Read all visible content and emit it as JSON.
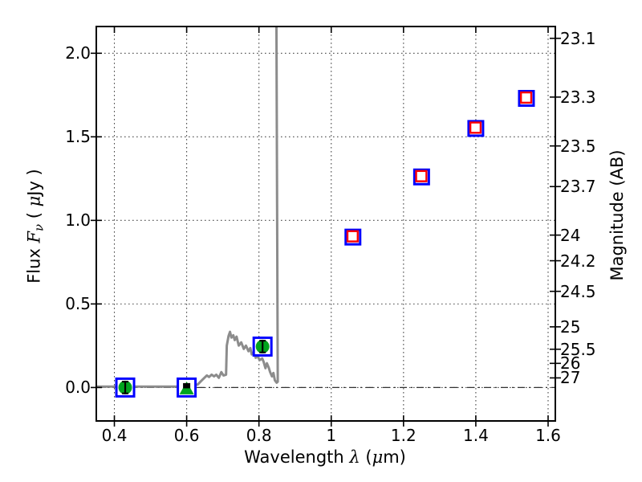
{
  "chart_data": {
    "type": "scatter",
    "description": "Spectral energy distribution plot: observed flux vs wavelength with photometric points, an upper limit, model photometry squares and a model spectrum line",
    "xlabel_parts": [
      {
        "t": "Wavelength  ",
        "s": "normal"
      },
      {
        "t": "λ",
        "s": "mathit"
      },
      {
        "t": " (",
        "s": "normal"
      },
      {
        "t": "μ",
        "s": "mathit"
      },
      {
        "t": "m)",
        "s": "normal"
      }
    ],
    "ylabel_left_parts": [
      {
        "t": "Flux  ",
        "s": "normal"
      },
      {
        "t": "F",
        "s": "mathit"
      },
      {
        "t": "ν",
        "s": "sub"
      },
      {
        "t": "  ( ",
        "s": "normal"
      },
      {
        "t": "μ",
        "s": "mathit"
      },
      {
        "t": "Jy )",
        "s": "normal"
      }
    ],
    "ylabel_right": "Magnitude (AB)",
    "x_axis": {
      "lim": [
        0.35,
        1.62
      ],
      "grid": "dotted",
      "ticks": [
        {
          "v": 0.4,
          "label": "0.4"
        },
        {
          "v": 0.6,
          "label": "0.6"
        },
        {
          "v": 0.8,
          "label": "0.8"
        },
        {
          "v": 1.0,
          "label": "1"
        },
        {
          "v": 1.2,
          "label": "1.2"
        },
        {
          "v": 1.4,
          "label": "1.4"
        },
        {
          "v": 1.6,
          "label": "1.6"
        }
      ]
    },
    "y_left_axis": {
      "lim": [
        -0.2,
        2.16
      ],
      "grid": "dotted",
      "ticks": [
        {
          "v": 2.0,
          "label": "2.0"
        },
        {
          "v": 1.5,
          "label": "1.5"
        },
        {
          "v": 1.0,
          "label": "1.0"
        },
        {
          "v": 0.5,
          "label": "0.5"
        },
        {
          "v": 0.0,
          "label": "0.0"
        }
      ]
    },
    "y_right_axis": {
      "ab_zero_point_microjansky": 23.9,
      "ticks": [
        {
          "mag": 23.1,
          "label": "23.1"
        },
        {
          "mag": 23.3,
          "label": "23.3"
        },
        {
          "mag": 23.5,
          "label": "23.5"
        },
        {
          "mag": 23.7,
          "label": "23.7"
        },
        {
          "mag": 24.0,
          "label": "24"
        },
        {
          "mag": 24.2,
          "label": "24.2"
        },
        {
          "mag": 24.5,
          "label": "24.5"
        },
        {
          "mag": 25.0,
          "label": "25"
        },
        {
          "mag": 25.5,
          "label": "25.5"
        },
        {
          "mag": 26.0,
          "label": "26"
        },
        {
          "mag": 27.0,
          "label": "27"
        }
      ]
    },
    "zero_flux_line": {
      "flux": 0.0,
      "style": "dash-dot"
    },
    "colors": {
      "spectrum": "#8c8c8c",
      "box": "#0000ff",
      "detection": "#00a41e",
      "model": "#ff0000",
      "errorbar": "#000000",
      "frame": "#000000",
      "grid": "#4a4a4a"
    },
    "series": [
      {
        "name": "photometry-detections",
        "marker": "green-circle-in-blue-square",
        "points": [
          {
            "x": 0.43,
            "y": 0.0,
            "yerr": 0.035
          },
          {
            "x": 0.81,
            "y": 0.245,
            "yerr": 0.035
          }
        ]
      },
      {
        "name": "photometry-upper-limit",
        "marker": "green-triangle-up-in-blue-square",
        "points": [
          {
            "x": 0.6,
            "y": 0.0
          }
        ]
      },
      {
        "name": "model-photometry",
        "marker": "red-open-square-in-blue-square",
        "points": [
          {
            "x": 1.06,
            "y": 0.9
          },
          {
            "x": 1.25,
            "y": 1.26
          },
          {
            "x": 1.4,
            "y": 1.55
          },
          {
            "x": 1.54,
            "y": 1.73
          }
        ]
      },
      {
        "name": "model-spectrum",
        "marker": "line",
        "points_xy": [
          [
            0.35,
            0.005
          ],
          [
            0.596,
            0.005
          ],
          [
            0.618,
            0.01
          ],
          [
            0.631,
            0.019
          ],
          [
            0.64,
            0.039
          ],
          [
            0.649,
            0.058
          ],
          [
            0.656,
            0.072
          ],
          [
            0.662,
            0.063
          ],
          [
            0.669,
            0.077
          ],
          [
            0.676,
            0.067
          ],
          [
            0.682,
            0.077
          ],
          [
            0.689,
            0.058
          ],
          [
            0.696,
            0.092
          ],
          [
            0.702,
            0.072
          ],
          [
            0.709,
            0.077
          ],
          [
            0.711,
            0.251
          ],
          [
            0.716,
            0.308
          ],
          [
            0.72,
            0.333
          ],
          [
            0.724,
            0.299
          ],
          [
            0.729,
            0.313
          ],
          [
            0.733,
            0.284
          ],
          [
            0.738,
            0.304
          ],
          [
            0.744,
            0.251
          ],
          [
            0.751,
            0.27
          ],
          [
            0.758,
            0.231
          ],
          [
            0.764,
            0.251
          ],
          [
            0.771,
            0.217
          ],
          [
            0.776,
            0.236
          ],
          [
            0.78,
            0.198
          ],
          [
            0.787,
            0.212
          ],
          [
            0.791,
            0.178
          ],
          [
            0.796,
            0.188
          ],
          [
            0.802,
            0.164
          ],
          [
            0.809,
            0.174
          ],
          [
            0.813,
            0.154
          ],
          [
            0.818,
            0.116
          ],
          [
            0.822,
            0.145
          ],
          [
            0.827,
            0.12
          ],
          [
            0.831,
            0.092
          ],
          [
            0.836,
            0.067
          ],
          [
            0.84,
            0.087
          ],
          [
            0.844,
            0.043
          ],
          [
            0.849,
            0.029
          ],
          [
            0.852,
            0.035
          ],
          [
            0.848,
            2.4
          ]
        ]
      }
    ]
  }
}
